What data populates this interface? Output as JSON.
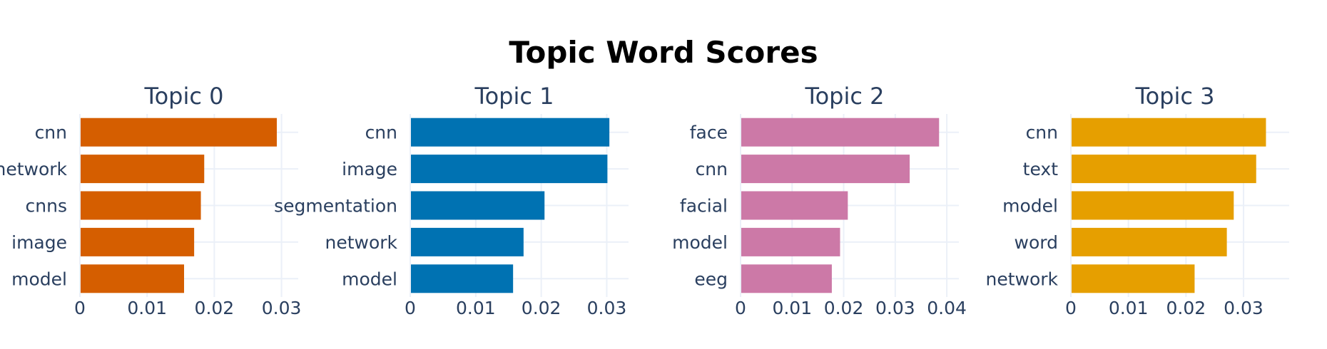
{
  "chart_data": {
    "type": "bar",
    "title": "Topic Word Scores",
    "orientation": "horizontal",
    "colors": [
      "#D55E00",
      "#0072B2",
      "#CC79A7",
      "#E69F00"
    ],
    "label_color": "#2a3f5f",
    "grid_color": "#ebf0f8",
    "grid": true,
    "panels": [
      {
        "title": "Topic 0",
        "xlim": [
          0,
          0.031
        ],
        "xticks": [
          0,
          0.01,
          0.02,
          0.03
        ],
        "xtick_labels": [
          "0",
          "0.01",
          "0.02",
          "0.03"
        ],
        "categories": [
          "cnn",
          "network",
          "cnns",
          "image",
          "model"
        ],
        "values": [
          0.0293,
          0.0185,
          0.018,
          0.017,
          0.0155
        ]
      },
      {
        "title": "Topic 1",
        "xlim": [
          0,
          0.0318
        ],
        "xticks": [
          0,
          0.01,
          0.02,
          0.03
        ],
        "xtick_labels": [
          "0",
          "0.01",
          "0.02",
          "0.03"
        ],
        "categories": [
          "cnn",
          "image",
          "segmentation",
          "network",
          "model"
        ],
        "values": [
          0.0304,
          0.0301,
          0.0205,
          0.0173,
          0.0157
        ]
      },
      {
        "title": "Topic 2",
        "xlim": [
          0,
          0.0404
        ],
        "xticks": [
          0,
          0.01,
          0.02,
          0.03,
          0.04
        ],
        "xtick_labels": [
          "0",
          "0.01",
          "0.02",
          "0.03",
          "0.04"
        ],
        "categories": [
          "face",
          "cnn",
          "facial",
          "model",
          "eeg"
        ],
        "values": [
          0.0385,
          0.0328,
          0.0208,
          0.0193,
          0.0177
        ]
      },
      {
        "title": "Topic 3",
        "xlim": [
          0,
          0.0362
        ],
        "xticks": [
          0,
          0.01,
          0.02,
          0.03
        ],
        "xtick_labels": [
          "0",
          "0.01",
          "0.02",
          "0.03"
        ],
        "categories": [
          "cnn",
          "text",
          "model",
          "word",
          "network"
        ],
        "values": [
          0.0339,
          0.0322,
          0.0283,
          0.0271,
          0.0215
        ]
      }
    ]
  }
}
